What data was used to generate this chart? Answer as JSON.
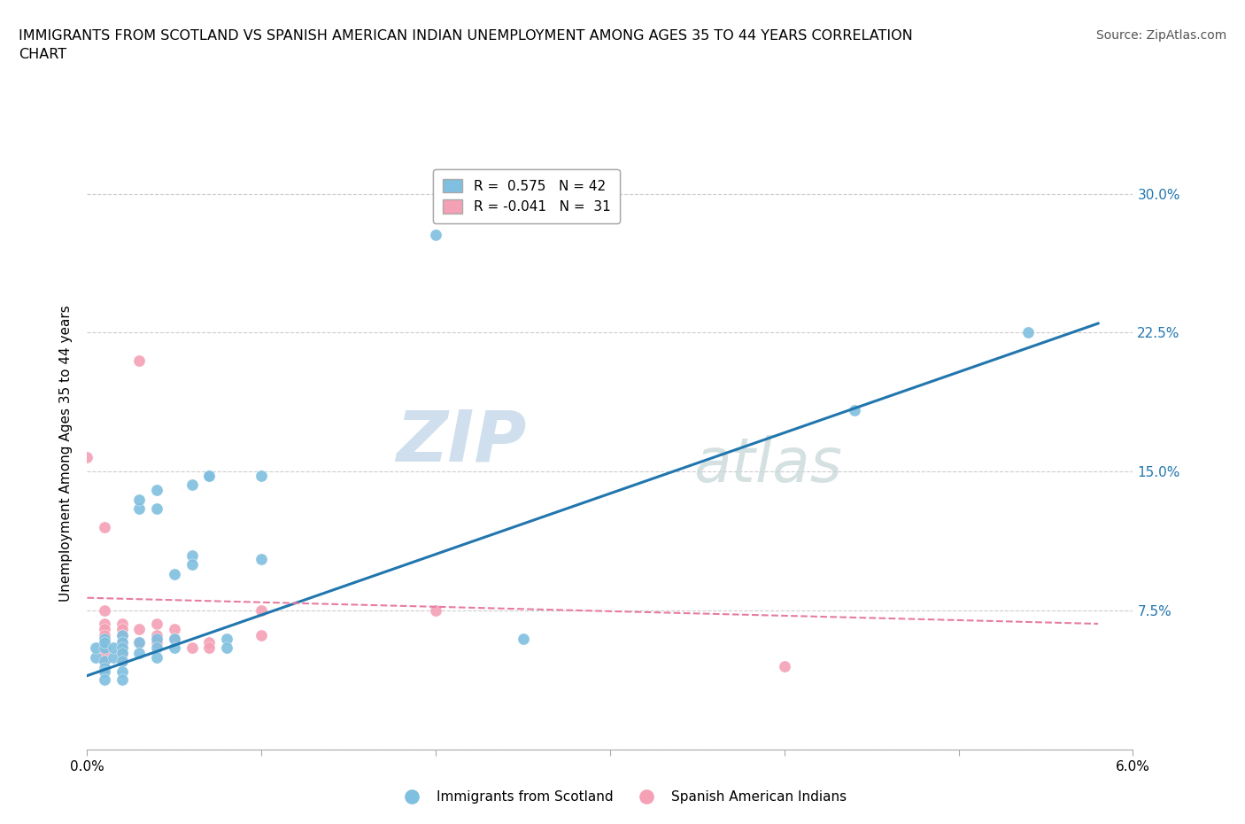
{
  "title": "IMMIGRANTS FROM SCOTLAND VS SPANISH AMERICAN INDIAN UNEMPLOYMENT AMONG AGES 35 TO 44 YEARS CORRELATION\nCHART",
  "source": "Source: ZipAtlas.com",
  "ylabel": "Unemployment Among Ages 35 to 44 years",
  "xlim": [
    0.0,
    0.06
  ],
  "ylim": [
    0.0,
    0.32
  ],
  "xticks": [
    0.0,
    0.01,
    0.02,
    0.03,
    0.04,
    0.05,
    0.06
  ],
  "yticks": [
    0.0,
    0.075,
    0.15,
    0.225,
    0.3
  ],
  "watermark_zip": "ZIP",
  "watermark_atlas": "atlas",
  "blue_color": "#7fbfdf",
  "pink_color": "#f4a0b5",
  "line_blue": "#2176ae",
  "line_pink": "#e87ca0",
  "scatter_blue": [
    [
      0.0005,
      0.05
    ],
    [
      0.0005,
      0.055
    ],
    [
      0.001,
      0.06
    ],
    [
      0.001,
      0.055
    ],
    [
      0.001,
      0.058
    ],
    [
      0.001,
      0.048
    ],
    [
      0.001,
      0.044
    ],
    [
      0.001,
      0.042
    ],
    [
      0.001,
      0.038
    ],
    [
      0.0015,
      0.05
    ],
    [
      0.0015,
      0.055
    ],
    [
      0.002,
      0.062
    ],
    [
      0.002,
      0.058
    ],
    [
      0.002,
      0.055
    ],
    [
      0.002,
      0.052
    ],
    [
      0.002,
      0.048
    ],
    [
      0.002,
      0.042
    ],
    [
      0.002,
      0.038
    ],
    [
      0.003,
      0.13
    ],
    [
      0.003,
      0.135
    ],
    [
      0.003,
      0.058
    ],
    [
      0.003,
      0.052
    ],
    [
      0.004,
      0.13
    ],
    [
      0.004,
      0.14
    ],
    [
      0.004,
      0.06
    ],
    [
      0.004,
      0.055
    ],
    [
      0.004,
      0.05
    ],
    [
      0.005,
      0.095
    ],
    [
      0.005,
      0.06
    ],
    [
      0.005,
      0.055
    ],
    [
      0.006,
      0.143
    ],
    [
      0.006,
      0.105
    ],
    [
      0.006,
      0.1
    ],
    [
      0.007,
      0.148
    ],
    [
      0.007,
      0.148
    ],
    [
      0.008,
      0.06
    ],
    [
      0.008,
      0.055
    ],
    [
      0.01,
      0.103
    ],
    [
      0.01,
      0.148
    ],
    [
      0.02,
      0.278
    ],
    [
      0.025,
      0.06
    ],
    [
      0.044,
      0.183
    ],
    [
      0.054,
      0.225
    ]
  ],
  "scatter_pink": [
    [
      0.0,
      0.158
    ],
    [
      0.001,
      0.12
    ],
    [
      0.001,
      0.075
    ],
    [
      0.001,
      0.068
    ],
    [
      0.001,
      0.065
    ],
    [
      0.001,
      0.062
    ],
    [
      0.001,
      0.055
    ],
    [
      0.001,
      0.052
    ],
    [
      0.001,
      0.048
    ],
    [
      0.002,
      0.068
    ],
    [
      0.002,
      0.065
    ],
    [
      0.002,
      0.062
    ],
    [
      0.002,
      0.058
    ],
    [
      0.002,
      0.055
    ],
    [
      0.002,
      0.052
    ],
    [
      0.002,
      0.048
    ],
    [
      0.003,
      0.21
    ],
    [
      0.003,
      0.065
    ],
    [
      0.003,
      0.058
    ],
    [
      0.004,
      0.068
    ],
    [
      0.004,
      0.062
    ],
    [
      0.004,
      0.058
    ],
    [
      0.005,
      0.065
    ],
    [
      0.005,
      0.06
    ],
    [
      0.006,
      0.055
    ],
    [
      0.007,
      0.058
    ],
    [
      0.007,
      0.055
    ],
    [
      0.01,
      0.075
    ],
    [
      0.01,
      0.062
    ],
    [
      0.02,
      0.075
    ],
    [
      0.04,
      0.045
    ]
  ],
  "blue_trendline": [
    [
      0.0,
      0.04
    ],
    [
      0.058,
      0.23
    ]
  ],
  "pink_trendline": [
    [
      0.0,
      0.082
    ],
    [
      0.058,
      0.068
    ]
  ]
}
